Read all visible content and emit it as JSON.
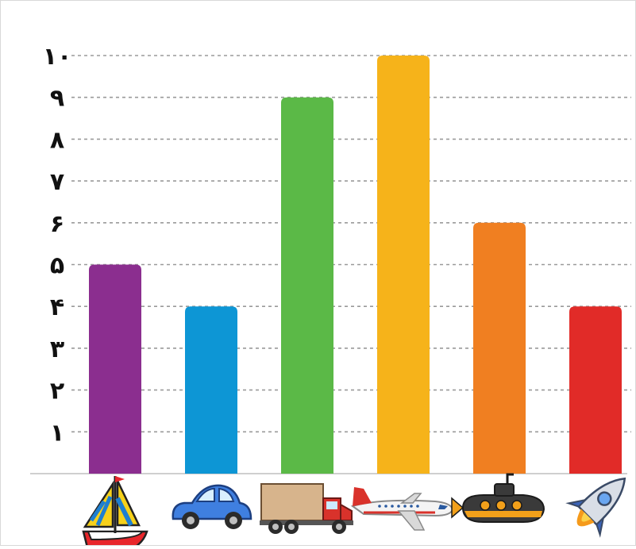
{
  "chart_data": {
    "type": "bar",
    "categories": [
      "sailboat",
      "car",
      "truck",
      "airplane",
      "submarine",
      "rocket"
    ],
    "values": [
      5,
      4,
      9,
      10,
      6,
      4
    ],
    "colors": [
      "#8b2e8f",
      "#0d96d5",
      "#5bb947",
      "#f6b31a",
      "#f07f21",
      "#e12b28"
    ],
    "category_icons": [
      "sailboat-icon",
      "car-icon",
      "truck-icon",
      "airplane-icon",
      "submarine-icon",
      "rocket-icon"
    ],
    "ylim": [
      0,
      10
    ],
    "yticks": [
      1,
      2,
      3,
      4,
      5,
      6,
      7,
      8,
      9,
      10
    ],
    "ytick_labels": [
      "۱",
      "۲",
      "۳",
      "۴",
      "۵",
      "۶",
      "۷",
      "۸",
      "۹",
      "۱۰"
    ],
    "grid": true,
    "grid_style": "dashed",
    "title": "",
    "xlabel": "",
    "ylabel": ""
  }
}
